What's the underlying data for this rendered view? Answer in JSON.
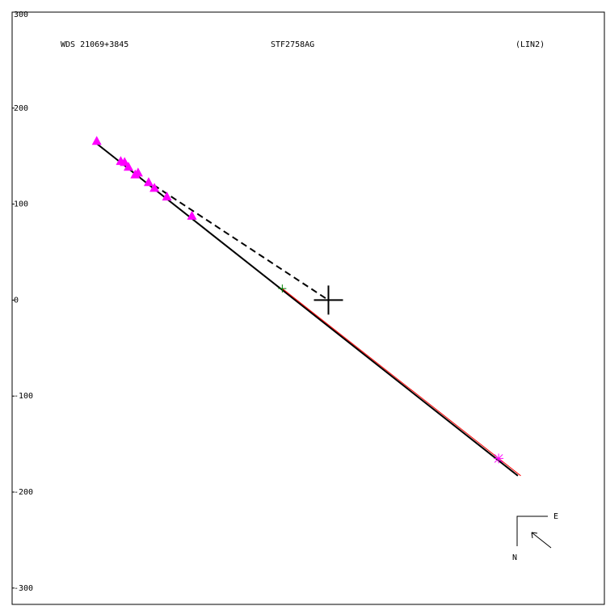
{
  "chart_data": {
    "type": "scatter",
    "title": "WDS 21069+3845",
    "subtitle": "STF2758AG",
    "annotations": [
      "(LIN2)"
    ],
    "compass": {
      "east": "E",
      "north": "N"
    },
    "xlim": [
      -329,
      287
    ],
    "ylim": [
      -317,
      300
    ],
    "yticks": [
      300,
      200,
      100,
      0,
      -100,
      -200,
      -300
    ],
    "lines": [
      {
        "color": "#000000",
        "dash": false,
        "x": [
          -241,
          197
        ],
        "y": [
          163,
          -183
        ]
      },
      {
        "color": "#ff0000",
        "dash": false,
        "x": [
          -48,
          200
        ],
        "y": [
          12,
          -183
        ]
      },
      {
        "color": "#000000",
        "dash": true,
        "x": [
          -182,
          0
        ],
        "y": [
          120,
          0
        ]
      }
    ],
    "series": [
      {
        "marker": "triangle",
        "color": "#ff00ff",
        "x": [
          -241,
          -216,
          -212,
          -208,
          -201,
          -198,
          -187,
          -181,
          -168,
          -142
        ],
        "y": [
          166,
          145,
          144,
          139,
          131,
          133,
          123,
          117,
          108,
          88
        ]
      },
      {
        "marker": "asterisk",
        "color": "#ff00ff",
        "x": [
          177
        ],
        "y": [
          -165
        ]
      },
      {
        "marker": "plus",
        "color": "#008000",
        "x": [
          -48
        ],
        "y": [
          12
        ]
      },
      {
        "marker": "cross",
        "color": "#000000",
        "x": [
          0
        ],
        "y": [
          0
        ]
      }
    ]
  }
}
